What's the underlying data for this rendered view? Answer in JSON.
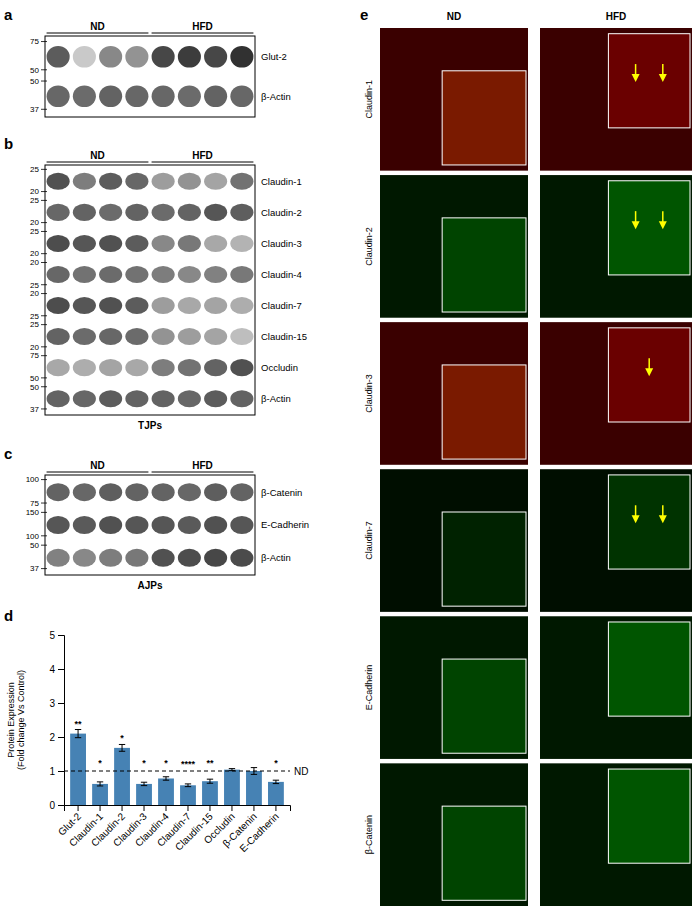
{
  "chart_data": [
    {
      "type": "blot",
      "title": "a",
      "groups": [
        "ND",
        "HFD"
      ],
      "group_sizes": [
        4,
        4
      ],
      "rows": [
        "Glut-2",
        "β-Actin"
      ],
      "mw_top": [
        75,
        50
      ],
      "mw_bottom": [
        50,
        37
      ],
      "cells": [
        [
          0.75,
          0.25,
          0.55,
          0.5,
          0.85,
          0.9,
          0.85,
          0.95
        ],
        [
          0.7,
          0.68,
          0.72,
          0.7,
          0.7,
          0.68,
          0.72,
          0.7
        ]
      ],
      "clim": [
        0,
        1
      ]
    },
    {
      "type": "blot",
      "title": "b",
      "groups": [
        "ND",
        "HFD"
      ],
      "group_sizes": [
        4,
        4
      ],
      "rows": [
        "Claudin-1",
        "Claudin-2",
        "Claudin-3",
        "Claudin-4",
        "Claudin-7",
        "Claudin-15",
        "Occludin",
        "β-Actin"
      ],
      "mw_top": [
        25,
        25,
        25,
        20,
        20,
        25,
        75,
        50
      ],
      "mw_bottom": [
        20,
        20,
        20,
        25,
        25,
        20,
        50,
        37
      ],
      "cells": [
        [
          0.8,
          0.6,
          0.75,
          0.7,
          0.45,
          0.5,
          0.42,
          0.65
        ],
        [
          0.7,
          0.72,
          0.68,
          0.72,
          0.68,
          0.72,
          0.78,
          0.74
        ],
        [
          0.82,
          0.78,
          0.8,
          0.75,
          0.55,
          0.62,
          0.4,
          0.35
        ],
        [
          0.7,
          0.65,
          0.68,
          0.65,
          0.6,
          0.55,
          0.58,
          0.62
        ],
        [
          0.82,
          0.78,
          0.8,
          0.75,
          0.45,
          0.4,
          0.42,
          0.38
        ],
        [
          0.72,
          0.68,
          0.7,
          0.68,
          0.5,
          0.45,
          0.42,
          0.3
        ],
        [
          0.4,
          0.38,
          0.42,
          0.4,
          0.6,
          0.65,
          0.72,
          0.8
        ],
        [
          0.72,
          0.7,
          0.75,
          0.72,
          0.72,
          0.7,
          0.75,
          0.72
        ]
      ],
      "clim": [
        0,
        1
      ],
      "xlabel": "TJPs"
    },
    {
      "type": "blot",
      "title": "c",
      "groups": [
        "ND",
        "HFD"
      ],
      "group_sizes": [
        4,
        4
      ],
      "rows": [
        "β-Catenin",
        "E-Cadherin",
        "β-Actin"
      ],
      "mw_top": [
        100,
        150,
        50
      ],
      "mw_bottom": [
        75,
        100,
        37
      ],
      "cells": [
        [
          0.72,
          0.7,
          0.74,
          0.72,
          0.72,
          0.7,
          0.74,
          0.72
        ],
        [
          0.78,
          0.76,
          0.8,
          0.78,
          0.78,
          0.76,
          0.8,
          0.78
        ],
        [
          0.58,
          0.55,
          0.6,
          0.62,
          0.8,
          0.82,
          0.85,
          0.83
        ]
      ],
      "clim": [
        0,
        1
      ],
      "xlabel": "AJPs"
    },
    {
      "type": "bar",
      "title": "d",
      "categories": [
        "Glut-2",
        "Claudin-1",
        "Claudin-2",
        "Claudin-3",
        "Claudin-4",
        "Claudin-7",
        "Claudin-15",
        "Occludin",
        "β-Catenin",
        "E-Cadherin"
      ],
      "values": [
        2.1,
        0.62,
        1.68,
        0.62,
        0.78,
        0.58,
        0.7,
        1.04,
        1.0,
        0.68
      ],
      "errors": [
        0.12,
        0.06,
        0.1,
        0.05,
        0.05,
        0.04,
        0.06,
        0.03,
        0.1,
        0.05
      ],
      "annotations": [
        "**",
        "*",
        "*",
        "*",
        "*",
        "****",
        "**",
        null,
        null,
        "*"
      ],
      "ylabel": "Protein Expression\n(Fold change Vs Control)",
      "ylim": [
        0,
        5
      ],
      "yticks": [
        0,
        1,
        2,
        3,
        4,
        5
      ],
      "ref_line": 1.0,
      "ref_label": "ND"
    },
    {
      "type": "image",
      "title": "e",
      "groups": [
        "ND",
        "HFD"
      ],
      "rows": [
        "Claudin-1",
        "Claudin-2",
        "Claudin-3",
        "Claudin-7",
        "E-Cadherin",
        "β-Catenin"
      ],
      "colors": [
        "#3a0000",
        "#001800",
        "#3a0000",
        "#000e00",
        "#001800",
        "#001800"
      ],
      "inset_colors": [
        [
          "#7a1a00",
          "#6a0000"
        ],
        [
          "#004400",
          "#005500"
        ],
        [
          "#7a1a00",
          "#6a0000"
        ],
        [
          "#002200",
          "#003300"
        ],
        [
          "#004400",
          "#005500"
        ],
        [
          "#004400",
          "#005500"
        ]
      ],
      "arrows": [
        2,
        2,
        1,
        2,
        0,
        0
      ]
    }
  ]
}
